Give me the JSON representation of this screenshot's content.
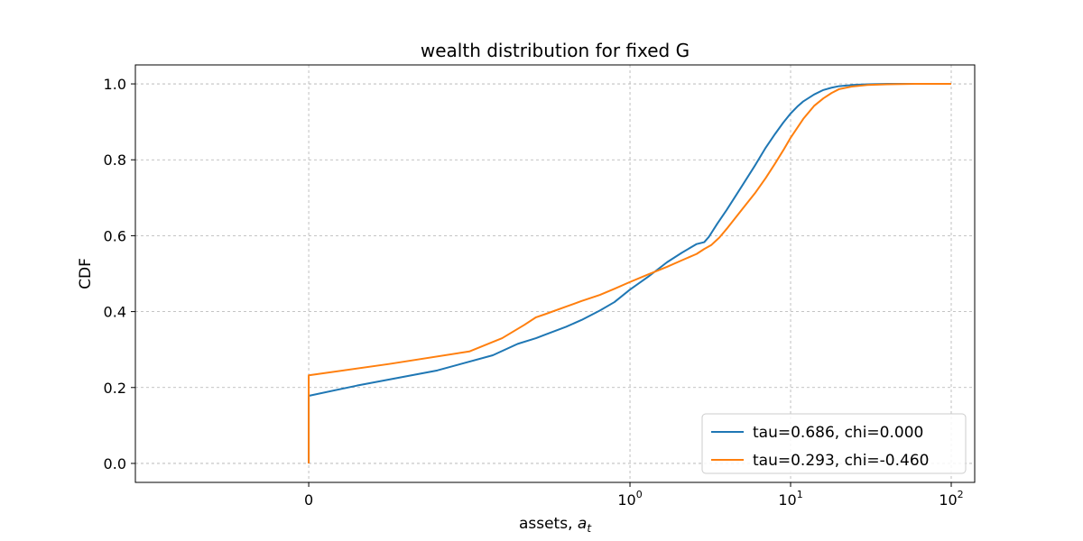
{
  "chart_data": {
    "type": "line",
    "title": "wealth distribution for fixed G",
    "xlabel_text": "assets, ",
    "xlabel_var": "a",
    "xlabel_sub": "t",
    "ylabel": "CDF",
    "xscale": "symlog",
    "xlim": [
      -0.12,
      140
    ],
    "ylim": [
      -0.05,
      1.05
    ],
    "grid": true,
    "legend_position": "lower-right",
    "x_ticks": [
      {
        "value": 0,
        "base": "0",
        "exp": ""
      },
      {
        "value": 1,
        "base": "10",
        "exp": "0"
      },
      {
        "value": 10,
        "base": "10",
        "exp": "1"
      },
      {
        "value": 100,
        "base": "10",
        "exp": "2"
      }
    ],
    "y_ticks": [
      {
        "value": 0.0,
        "label": "0.0"
      },
      {
        "value": 0.2,
        "label": "0.2"
      },
      {
        "value": 0.4,
        "label": "0.4"
      },
      {
        "value": 0.6,
        "label": "0.6"
      },
      {
        "value": 0.8,
        "label": "0.8"
      },
      {
        "value": 1.0,
        "label": "1.0"
      }
    ],
    "series": [
      {
        "name": "tau=0.686, chi=0.000",
        "color": "#1f77b4",
        "x": [
          0,
          0,
          0.03,
          0.08,
          0.14,
          0.2,
          0.26,
          0.3,
          0.4,
          0.5,
          0.65,
          0.8,
          1.0,
          1.3,
          1.7,
          2.1,
          2.6,
          2.9,
          3.1,
          3.5,
          4.0,
          5.0,
          6.0,
          7.0,
          8.0,
          9.0,
          10.0,
          11.0,
          12.0,
          14.0,
          16.0,
          18.0,
          20.0,
          24.0,
          30.0,
          40.0,
          60.0,
          100.0
        ],
        "y": [
          0.0,
          0.178,
          0.205,
          0.245,
          0.285,
          0.315,
          0.33,
          0.34,
          0.36,
          0.378,
          0.403,
          0.425,
          0.458,
          0.492,
          0.53,
          0.555,
          0.578,
          0.583,
          0.597,
          0.632,
          0.668,
          0.732,
          0.785,
          0.832,
          0.868,
          0.898,
          0.922,
          0.94,
          0.954,
          0.972,
          0.984,
          0.99,
          0.994,
          0.997,
          0.999,
          1.0,
          1.0,
          1.0
        ]
      },
      {
        "name": "tau=0.293, chi=-0.460",
        "color": "#ff7f0e",
        "x": [
          0,
          0,
          0.05,
          0.1,
          0.16,
          0.22,
          0.26,
          0.3,
          0.4,
          0.5,
          0.65,
          0.8,
          1.0,
          1.3,
          1.7,
          2.1,
          2.6,
          2.9,
          3.2,
          3.6,
          4.0,
          5.0,
          6.0,
          7.0,
          8.0,
          9.0,
          10.0,
          12.0,
          14.0,
          16.0,
          18.0,
          20.0,
          24.0,
          30.0,
          40.0,
          60.0,
          100.0
        ],
        "y": [
          0.0,
          0.232,
          0.262,
          0.295,
          0.33,
          0.365,
          0.385,
          0.394,
          0.413,
          0.428,
          0.444,
          0.46,
          0.478,
          0.498,
          0.518,
          0.535,
          0.552,
          0.565,
          0.575,
          0.595,
          0.618,
          0.67,
          0.712,
          0.752,
          0.79,
          0.825,
          0.858,
          0.908,
          0.942,
          0.962,
          0.976,
          0.986,
          0.993,
          0.997,
          0.999,
          1.0,
          1.0
        ]
      }
    ]
  }
}
